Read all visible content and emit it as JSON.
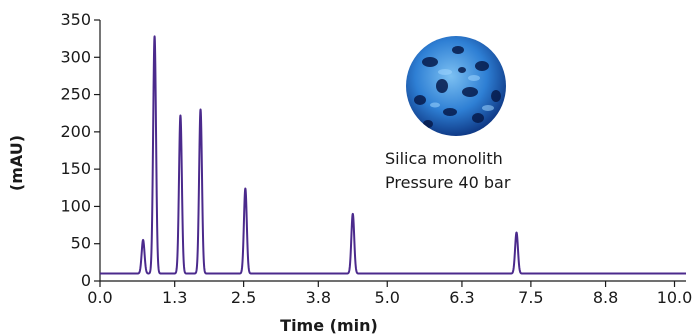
{
  "chart_data": {
    "type": "line",
    "title": "",
    "xlabel": "Time (min)",
    "ylabel": "(mAU)",
    "xlim": [
      0,
      10.2
    ],
    "ylim": [
      0,
      350
    ],
    "x_ticks": [
      0,
      1.3,
      2.5,
      3.8,
      5.0,
      6.3,
      7.5,
      8.8,
      10.0
    ],
    "x_tick_labels": [
      "0.0",
      "1.3",
      "2.5",
      "3.8",
      "5.0",
      "6.3",
      "7.5",
      "8.8",
      "10.0"
    ],
    "y_ticks": [
      0,
      50,
      100,
      150,
      200,
      250,
      300,
      350
    ],
    "y_tick_labels": [
      "0",
      "50",
      "100",
      "150",
      "200",
      "250",
      "300",
      "350"
    ],
    "grid": false,
    "line_color": "#4b2a8c",
    "baseline": 10,
    "peaks": [
      {
        "x": 0.75,
        "y": 55
      },
      {
        "x": 0.95,
        "y": 328
      },
      {
        "x": 1.4,
        "y": 222
      },
      {
        "x": 1.75,
        "y": 230
      },
      {
        "x": 2.53,
        "y": 124
      },
      {
        "x": 4.4,
        "y": 90
      },
      {
        "x": 7.25,
        "y": 65
      }
    ],
    "annotations": [
      "Silica monolith",
      "Pressure 40 bar"
    ]
  },
  "image": {
    "icon": "silica-monolith-micrograph-icon",
    "colors": [
      "#0a2d78",
      "#2e7fd4",
      "#7cc0f2"
    ]
  }
}
